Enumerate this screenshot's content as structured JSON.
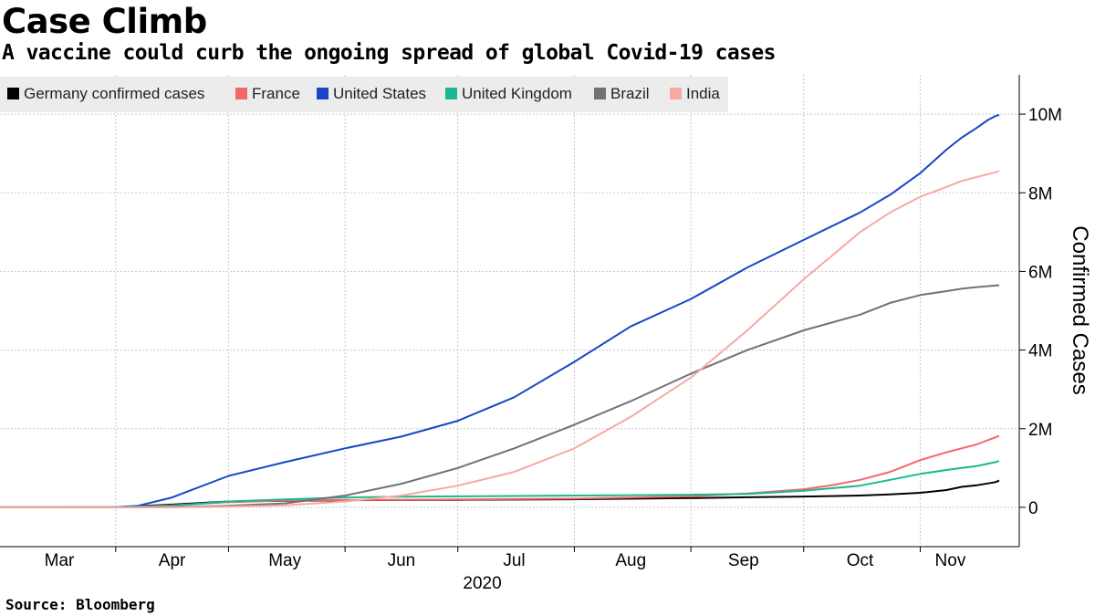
{
  "title": "Case Climb",
  "subtitle": "A vaccine could curb the ongoing spread of global Covid-19 cases",
  "source": "Source:  Bloomberg",
  "chart_data": {
    "type": "line",
    "title": "Case Climb",
    "subtitle": "A vaccine could curb the ongoing spread of global Covid-19 cases",
    "xlabel": "2020",
    "ylabel": "Confirmed Cases",
    "x_unit": "days since Mar 1, 2020",
    "xlim": [
      0,
      254
    ],
    "ylim": [
      -1000000,
      11000000
    ],
    "y_ticks": [
      {
        "value": 0,
        "label": "0"
      },
      {
        "value": 2000000,
        "label": "2M"
      },
      {
        "value": 4000000,
        "label": "4M"
      },
      {
        "value": 6000000,
        "label": "6M"
      },
      {
        "value": 8000000,
        "label": "8M"
      },
      {
        "value": 10000000,
        "label": "10M"
      }
    ],
    "month_boundaries": [
      15,
      45,
      76,
      106,
      137,
      168,
      198,
      229
    ],
    "x_ticks": [
      {
        "day": 0,
        "label": "Mar"
      },
      {
        "day": 30,
        "label": "Apr"
      },
      {
        "day": 60,
        "label": "May"
      },
      {
        "day": 91,
        "label": "Jun"
      },
      {
        "day": 121,
        "label": "Jul"
      },
      {
        "day": 152,
        "label": "Aug"
      },
      {
        "day": 182,
        "label": "Sep"
      },
      {
        "day": 213,
        "label": "Oct"
      },
      {
        "day": 237,
        "label": "Nov"
      }
    ],
    "year_label": "2020",
    "grid": true,
    "legend_position": "top-left",
    "series": [
      {
        "name": "Germany confirmed cases",
        "color": "#000000",
        "x": [
          0,
          15,
          30,
          45,
          60,
          76,
          91,
          106,
          137,
          168,
          183,
          198,
          213,
          221,
          229,
          236,
          240,
          244,
          249,
          250
        ],
        "y": [
          0,
          4000,
          70000,
          150000,
          165000,
          180000,
          185000,
          190000,
          205000,
          235000,
          255000,
          275000,
          300000,
          330000,
          370000,
          440000,
          520000,
          560000,
          640000,
          680000
        ]
      },
      {
        "name": "France",
        "color": "#f26868",
        "x": [
          0,
          15,
          30,
          45,
          60,
          76,
          91,
          106,
          137,
          168,
          183,
          198,
          206,
          213,
          221,
          229,
          236,
          240,
          244,
          249,
          250
        ],
        "y": [
          0,
          5000,
          50000,
          130000,
          175000,
          185000,
          190000,
          200000,
          220000,
          280000,
          350000,
          460000,
          570000,
          700000,
          900000,
          1200000,
          1400000,
          1500000,
          1600000,
          1780000,
          1820000
        ]
      },
      {
        "name": "United States",
        "color": "#1746c9",
        "x": [
          0,
          15,
          21,
          30,
          45,
          60,
          76,
          91,
          106,
          121,
          137,
          152,
          168,
          183,
          198,
          213,
          221,
          229,
          236,
          240,
          244,
          247,
          249,
          250
        ],
        "y": [
          0,
          4000,
          40000,
          250000,
          800000,
          1150000,
          1500000,
          1800000,
          2200000,
          2800000,
          3700000,
          4600000,
          5300000,
          6100000,
          6800000,
          7500000,
          7950000,
          8500000,
          9100000,
          9400000,
          9650000,
          9850000,
          9950000,
          9980000
        ]
      },
      {
        "name": "United Kingdom",
        "color": "#17b893",
        "x": [
          0,
          15,
          30,
          45,
          60,
          76,
          91,
          106,
          137,
          168,
          183,
          198,
          213,
          221,
          229,
          236,
          240,
          244,
          249,
          250
        ],
        "y": [
          0,
          2000,
          35000,
          150000,
          200000,
          250000,
          270000,
          280000,
          300000,
          320000,
          340000,
          420000,
          550000,
          700000,
          850000,
          950000,
          1000000,
          1050000,
          1150000,
          1180000
        ]
      },
      {
        "name": "Brazil",
        "color": "#727272",
        "x": [
          0,
          15,
          30,
          45,
          60,
          76,
          91,
          106,
          121,
          137,
          152,
          168,
          183,
          198,
          213,
          221,
          229,
          236,
          240,
          244,
          249,
          250
        ],
        "y": [
          0,
          0,
          5000,
          40000,
          100000,
          300000,
          600000,
          1000000,
          1500000,
          2100000,
          2700000,
          3400000,
          4000000,
          4500000,
          4900000,
          5200000,
          5400000,
          5500000,
          5560000,
          5600000,
          5640000,
          5650000
        ]
      },
      {
        "name": "India",
        "color": "#f7a9a4",
        "x": [
          0,
          15,
          30,
          45,
          60,
          76,
          91,
          106,
          121,
          137,
          152,
          168,
          183,
          198,
          213,
          221,
          229,
          236,
          240,
          244,
          249,
          250
        ],
        "y": [
          0,
          0,
          1000,
          20000,
          50000,
          150000,
          300000,
          550000,
          900000,
          1500000,
          2300000,
          3300000,
          4500000,
          5800000,
          7000000,
          7500000,
          7900000,
          8150000,
          8300000,
          8400000,
          8520000,
          8550000
        ]
      }
    ]
  }
}
